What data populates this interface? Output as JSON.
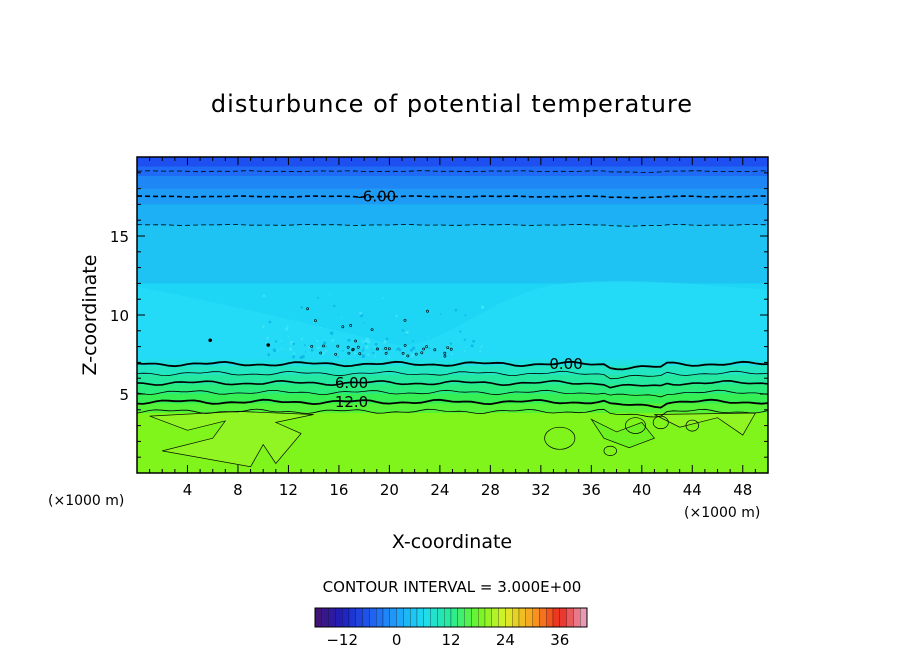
{
  "chart_data": {
    "type": "contour",
    "title": "disturbunce of potential temperature",
    "xlabel": "X-coordinate",
    "ylabel": "Z-coordinate",
    "x_unit": "(×1000 m)",
    "y_unit": "(×1000 m)",
    "xlim": [
      0,
      50
    ],
    "ylim": [
      0,
      20
    ],
    "x_ticks": [
      4,
      8,
      12,
      16,
      20,
      24,
      28,
      32,
      36,
      40,
      44,
      48
    ],
    "y_ticks": [
      5,
      10,
      15
    ],
    "contour_interval_text": "CONTOUR INTERVAL = 3.000E+00",
    "contour_labels": [
      {
        "text": "-6.00",
        "x": 19,
        "z": 17.5
      },
      {
        "text": "0.00",
        "x": 34,
        "z": 6.9
      },
      {
        "text": "6.00",
        "x": 17,
        "z": 5.7
      },
      {
        "text": "12.0",
        "x": 17,
        "z": 4.5
      }
    ],
    "colorbar": {
      "min": -18,
      "max": 42,
      "tick_values": [
        -12,
        0,
        12,
        24,
        36
      ],
      "tick_labels": [
        "−12",
        "0",
        "12",
        "24",
        "36"
      ]
    },
    "bands": [
      {
        "z_from": 19.4,
        "z_to": 20.0,
        "value": -12,
        "color": "#1e4ff0"
      },
      {
        "z_from": 18.8,
        "z_to": 19.4,
        "value": -10.5,
        "color": "#1f6bf5"
      },
      {
        "z_from": 18.0,
        "z_to": 18.8,
        "value": -9,
        "color": "#1f86f5"
      },
      {
        "z_from": 17.0,
        "z_to": 18.0,
        "value": -7.5,
        "color": "#1e9bf5"
      },
      {
        "z_from": 15.7,
        "z_to": 17.0,
        "value": -6,
        "color": "#1db0f5"
      },
      {
        "z_from": 12.0,
        "z_to": 15.7,
        "value": -3,
        "color": "#1fc3f3"
      },
      {
        "z_from": 7.2,
        "z_to": 12.0,
        "value": -1.5,
        "color": "#1dd5f5"
      },
      {
        "z_from": 6.8,
        "z_to": 7.2,
        "value": 0,
        "color": "#20e0e6"
      },
      {
        "z_from": 6.2,
        "z_to": 6.8,
        "value": 1.5,
        "color": "#22e6c2"
      },
      {
        "z_from": 5.6,
        "z_to": 6.2,
        "value": 3,
        "color": "#25e8a0"
      },
      {
        "z_from": 5.0,
        "z_to": 5.6,
        "value": 4.5,
        "color": "#2aec7c"
      },
      {
        "z_from": 4.4,
        "z_to": 5.0,
        "value": 6,
        "color": "#35ef55"
      },
      {
        "z_from": 3.8,
        "z_to": 4.4,
        "value": 9,
        "color": "#55f23a"
      },
      {
        "z_from": 0.0,
        "z_to": 3.8,
        "value": 12,
        "color": "#7ff51c"
      }
    ],
    "contour_lines": [
      {
        "z": 19.1,
        "value": -9,
        "style": "dashed",
        "width": 0.8
      },
      {
        "z": 17.5,
        "value": -6,
        "style": "dashed",
        "width": 1.6
      },
      {
        "z": 15.7,
        "value": -3,
        "style": "dashed",
        "width": 0.8
      },
      {
        "z": 6.9,
        "value": 0,
        "style": "solid",
        "width": 1.8
      },
      {
        "z": 6.3,
        "value": 3,
        "style": "solid",
        "width": 0.8
      },
      {
        "z": 5.7,
        "value": 6,
        "style": "solid",
        "width": 1.6
      },
      {
        "z": 5.1,
        "value": 9,
        "style": "solid",
        "width": 0.8
      },
      {
        "z": 4.5,
        "value": 12,
        "style": "solid",
        "width": 1.8
      },
      {
        "z": 3.9,
        "value": 15,
        "style": "solid",
        "width": 0.8
      }
    ]
  }
}
